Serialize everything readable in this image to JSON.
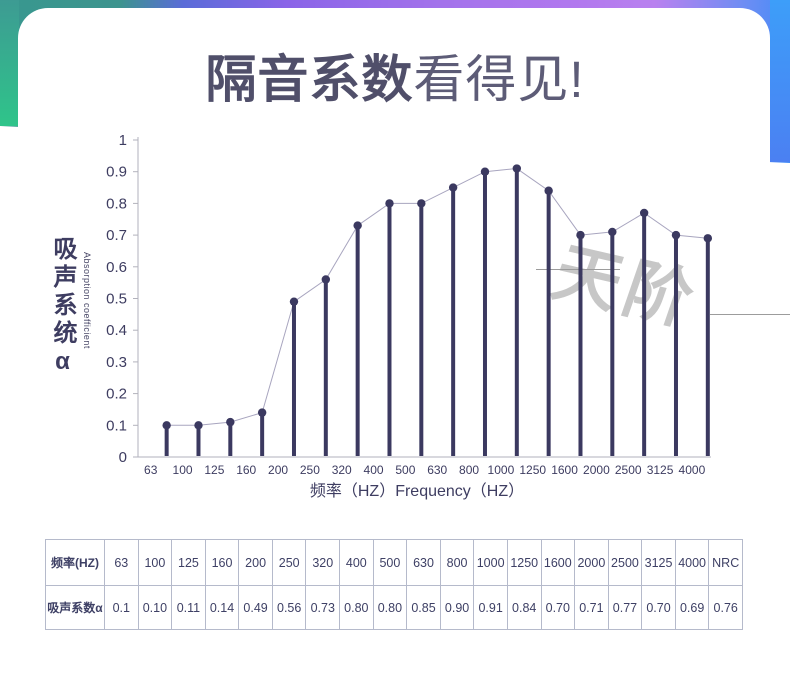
{
  "header": {
    "title_bold": "隔音系数",
    "title_light": "看得见!"
  },
  "chart_data": {
    "type": "lollipop-line",
    "title": "",
    "categories": [
      "63",
      "100",
      "125",
      "160",
      "200",
      "250",
      "320",
      "400",
      "500",
      "630",
      "800",
      "1000",
      "1250",
      "1600",
      "2000",
      "2500",
      "3125",
      "4000"
    ],
    "values": [
      0.1,
      0.1,
      0.11,
      0.14,
      0.49,
      0.56,
      0.73,
      0.8,
      0.8,
      0.85,
      0.9,
      0.91,
      0.84,
      0.7,
      0.71,
      0.77,
      0.7,
      0.69
    ],
    "xlabel": "频率（HZ）Frequency（HZ）",
    "ylabel_cn": "吸声系统α",
    "ylabel_en": "Absorption coefficient",
    "ylim": [
      0,
      1
    ],
    "yticks": [
      "0",
      "0.1",
      "0.2",
      "0.3",
      "0.4",
      "0.5",
      "0.6",
      "0.7",
      "0.8",
      "0.9",
      "1"
    ],
    "grid": false,
    "legend": false
  },
  "watermark": {
    "text": "天阶"
  },
  "table": {
    "row1_header": "频率(HZ)",
    "row2_header": "吸声系数α",
    "frequencies": [
      "63",
      "100",
      "125",
      "160",
      "200",
      "250",
      "320",
      "400",
      "500",
      "630",
      "800",
      "1000",
      "1250",
      "1600",
      "2000",
      "2500",
      "3125",
      "4000",
      "NRC"
    ],
    "coefficients": [
      "0.1",
      "0.10",
      "0.11",
      "0.14",
      "0.49",
      "0.56",
      "0.73",
      "0.80",
      "0.80",
      "0.85",
      "0.90",
      "0.91",
      "0.84",
      "0.70",
      "0.71",
      "0.77",
      "0.70",
      "0.69",
      "0.76"
    ]
  },
  "colors": {
    "stem": "#3b3960",
    "connector": "#a8a5bf",
    "axis": "#b2b2bc",
    "text_dark": "#3d3c60",
    "title_bold": "#504f6a",
    "title_light": "#5d5c77",
    "watermark": "#c7c7c7",
    "table_border": "#b5bacb"
  }
}
